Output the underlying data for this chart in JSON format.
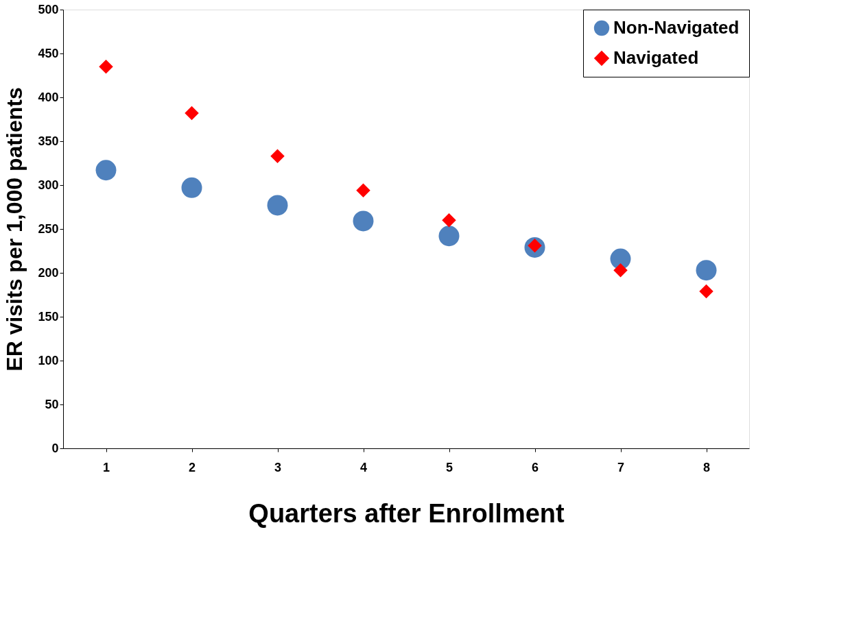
{
  "chart_data": {
    "type": "scatter",
    "xlabel": "Quarters after Enrollment",
    "ylabel": "ER visits per 1,000 patients",
    "categories": [
      "1",
      "2",
      "3",
      "4",
      "5",
      "6",
      "7",
      "8"
    ],
    "series": [
      {
        "name": "Non-Navigated",
        "color": "#4f81bd",
        "marker": "circle",
        "values": [
          317,
          297,
          277,
          259,
          242,
          229,
          216,
          203
        ]
      },
      {
        "name": "Navigated",
        "color": "#ff0000",
        "marker": "diamond",
        "values": [
          435,
          382,
          333,
          294,
          260,
          231,
          203,
          179
        ]
      }
    ],
    "ylim": [
      0,
      500
    ],
    "yticks": [
      0,
      50,
      100,
      150,
      200,
      250,
      300,
      350,
      400,
      450,
      500
    ],
    "grid": false,
    "legend": "top right"
  }
}
